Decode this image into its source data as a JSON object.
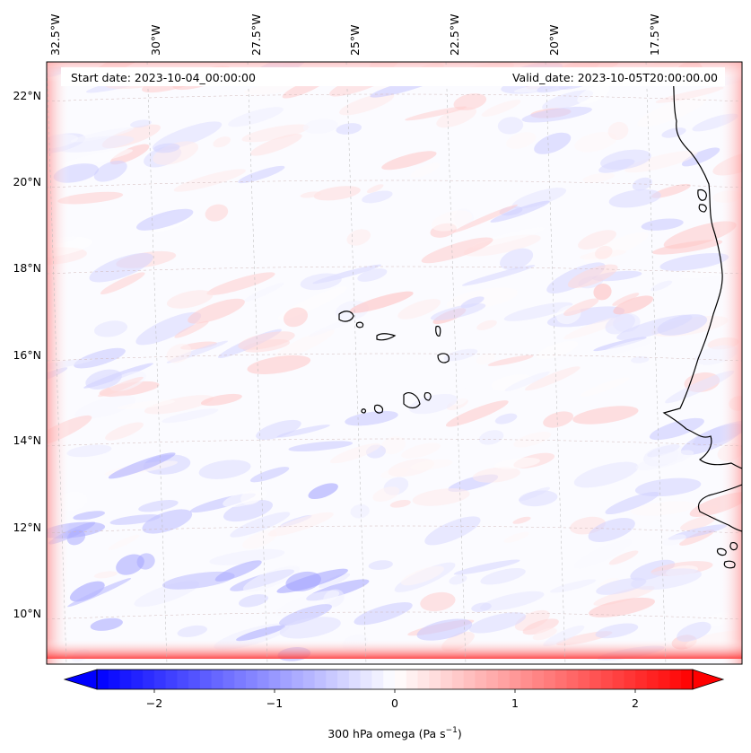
{
  "map": {
    "start_date_label": "Start date: 2023-10-04_00:00:00",
    "valid_date_label": "Valid_date: 2023-10-05T20:00:00.00",
    "longitude_labels": [
      "32.5°W",
      "30°W",
      "27.5°W",
      "25°W",
      "22.5°W",
      "20°W",
      "17.5°W"
    ],
    "latitude_labels": [
      "22°N",
      "20°N",
      "18°N",
      "16°N",
      "14°N",
      "12°N",
      "10°N"
    ],
    "colorbar": {
      "label": "300 hPa omega (Pa s",
      "label_superscript": "−1",
      "label_suffix": ")",
      "tick_labels": [
        "−2",
        "−1",
        "0",
        "1",
        "2"
      ],
      "range": [
        -2.6,
        2.6
      ],
      "ticks": [
        -2,
        -1,
        0,
        1,
        2
      ],
      "colormap": "bwr",
      "low_color": "#0000ff",
      "mid_color": "#ffffff",
      "high_color": "#ff0000",
      "extend": "both"
    },
    "field_style": "contourf",
    "grid": "dashed",
    "coastline_color": "#000000"
  }
}
